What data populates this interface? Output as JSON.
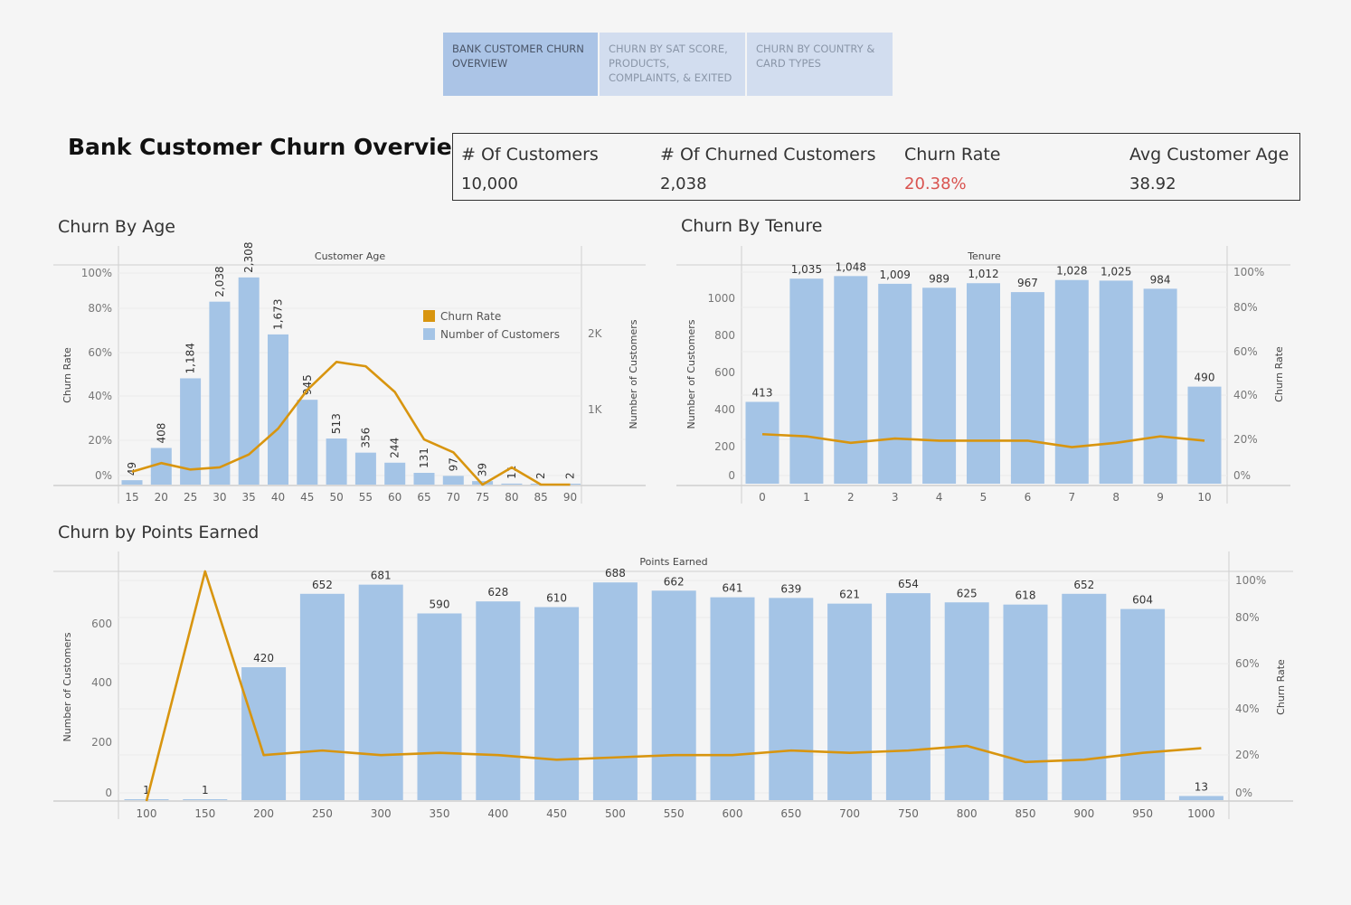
{
  "tabs": [
    {
      "label": "BANK CUSTOMER CHURN OVERVIEW"
    },
    {
      "label": "CHURN BY SAT SCORE, PRODUCTS, COMPLAINTS, & EXITED"
    },
    {
      "label": "CHURN BY COUNTRY & CARD TYPES"
    }
  ],
  "title": "Bank Customer Churn Overview",
  "kpis": [
    {
      "label": "# Of Customers",
      "value": "10,000"
    },
    {
      "label": "# Of Churned Customers",
      "value": "2,038"
    },
    {
      "label": "Churn Rate",
      "value": "20.38%"
    },
    {
      "label": "Avg Customer Age",
      "value": "38.92"
    }
  ],
  "colors": {
    "bar": "#a4c4e6",
    "line": "#d8950f",
    "kpi_red": "#d9534f"
  },
  "chart_data": [
    {
      "type": "bar",
      "title": "Churn By Age",
      "xlabel": "Customer Age",
      "ylabel_left": "Churn Rate",
      "ylabel_right": "Number of Customers",
      "legend": [
        "Churn Rate",
        "Number of Customers"
      ],
      "legend_position": "top-right",
      "categories": [
        "15",
        "20",
        "25",
        "30",
        "35",
        "40",
        "45",
        "50",
        "55",
        "60",
        "65",
        "70",
        "75",
        "80",
        "85",
        "90"
      ],
      "series": [
        {
          "name": "Number of Customers",
          "values": [
            49,
            408,
            1184,
            2038,
            2308,
            1673,
            945,
            513,
            356,
            244,
            131,
            97,
            39,
            11,
            2,
            2
          ],
          "labels": [
            "49",
            "408",
            "1,184",
            "2,038",
            "2,308",
            "1,673",
            "945",
            "513",
            "356",
            "244",
            "131",
            "97",
            "39",
            "11",
            "2",
            "2"
          ]
        },
        {
          "name": "Churn Rate",
          "values": [
            6,
            10,
            7,
            8,
            14,
            26,
            44,
            57,
            55,
            43,
            21,
            15,
            0,
            8,
            0,
            0
          ]
        }
      ],
      "y_left_ticks": [
        "100%",
        "80%",
        "60%",
        "40%",
        "20%",
        "0%"
      ],
      "y_right_ticks": [
        "2K",
        "1K"
      ],
      "ylim_left": [
        0,
        100
      ],
      "ylim_right": [
        0,
        2800
      ]
    },
    {
      "type": "bar",
      "title": "Churn By Tenure",
      "xlabel": "Tenure",
      "ylabel_left": "Number of Customers",
      "ylabel_right": "Churn Rate",
      "categories": [
        "0",
        "1",
        "2",
        "3",
        "4",
        "5",
        "6",
        "7",
        "8",
        "9",
        "10"
      ],
      "series": [
        {
          "name": "Number of Customers",
          "values": [
            413,
            1035,
            1048,
            1009,
            989,
            1012,
            967,
            1028,
            1025,
            984,
            490
          ],
          "labels": [
            "413",
            "1,035",
            "1,048",
            "1,009",
            "989",
            "1,012",
            "967",
            "1,028",
            "1,025",
            "984",
            "490"
          ]
        },
        {
          "name": "Churn Rate",
          "values": [
            23,
            22,
            19,
            21,
            20,
            20,
            20,
            17,
            19,
            22,
            20
          ]
        }
      ],
      "y_left_ticks": [
        "1000",
        "800",
        "600",
        "400",
        "200",
        "0"
      ],
      "y_right_ticks": [
        "100%",
        "80%",
        "60%",
        "40%",
        "20%",
        "0%"
      ],
      "ylim_left": [
        0,
        1150
      ],
      "ylim_right": [
        0,
        100
      ]
    },
    {
      "type": "bar",
      "title": "Churn by Points Earned",
      "xlabel": "Points Earned",
      "ylabel_left": "Number of Customers",
      "ylabel_right": "Churn Rate",
      "categories": [
        "100",
        "150",
        "200",
        "250",
        "300",
        "350",
        "400",
        "450",
        "500",
        "550",
        "600",
        "650",
        "700",
        "750",
        "800",
        "850",
        "900",
        "950",
        "1000"
      ],
      "series": [
        {
          "name": "Number of Customers",
          "values": [
            1,
            1,
            420,
            652,
            681,
            590,
            628,
            610,
            688,
            662,
            641,
            639,
            621,
            654,
            625,
            618,
            652,
            604,
            13
          ],
          "labels": [
            "1",
            "1",
            "420",
            "652",
            "681",
            "590",
            "628",
            "610",
            "688",
            "662",
            "641",
            "639",
            "621",
            "654",
            "625",
            "618",
            "652",
            "604",
            "13"
          ]
        },
        {
          "name": "Churn Rate",
          "values": [
            0,
            100,
            20,
            22,
            20,
            21,
            20,
            18,
            19,
            20,
            20,
            22,
            21,
            22,
            24,
            17,
            18,
            21,
            23
          ]
        }
      ],
      "y_left_ticks": [
        "600",
        "400",
        "200",
        "0"
      ],
      "y_right_ticks": [
        "100%",
        "80%",
        "60%",
        "40%",
        "20%",
        "0%"
      ],
      "ylim_left": [
        0,
        740
      ],
      "ylim_right": [
        0,
        100
      ]
    }
  ]
}
